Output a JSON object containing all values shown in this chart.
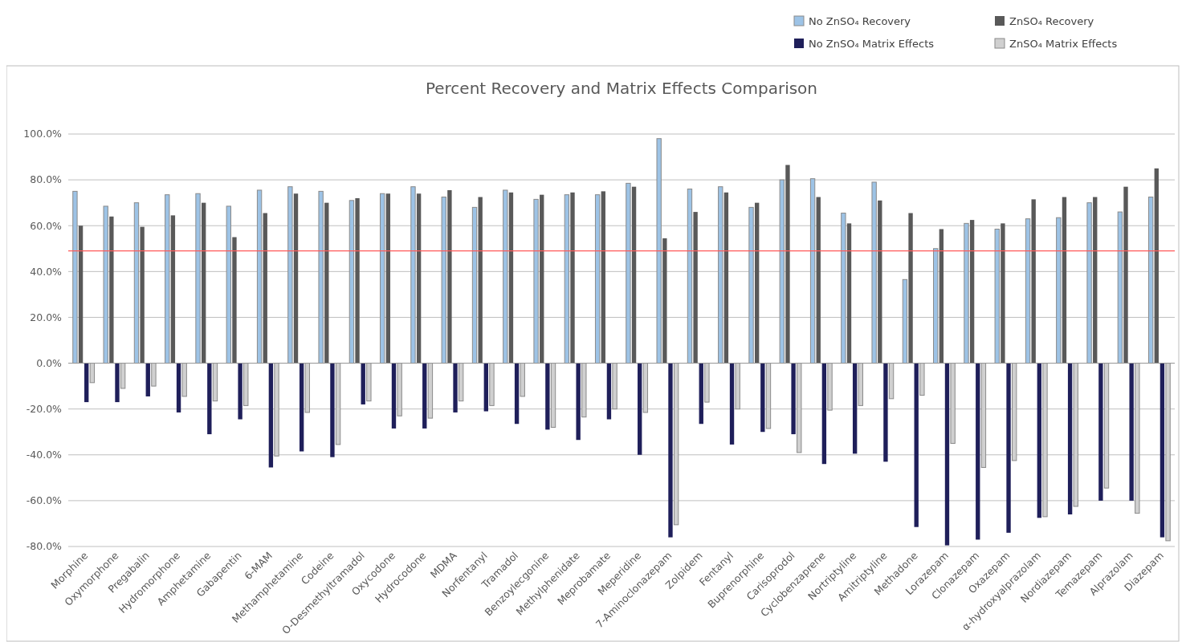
{
  "chart_data": {
    "type": "bar",
    "title": "Percent Recovery and Matrix Effects Comparison",
    "categories": [
      "Morphine",
      "Oxymorphone",
      "Pregabalin",
      "Hydromorphone",
      "Amphetamine",
      "Gabapentin",
      "6-MAM",
      "Methamphetamine",
      "Codeine",
      "O-Desmethyltramadol",
      "Oxycodone",
      "Hydrocodone",
      "MDMA",
      "Norfentanyl",
      "Tramadol",
      "Benzoylecgonine",
      "Methylphenidate",
      "Meprobamate",
      "Meperidine",
      "7-Aminoclonazepam",
      "Zolpidem",
      "Fentanyl",
      "Buprenorphine",
      "Carisoprodol",
      "Cyclobenzaprene",
      "Nortriptyline",
      "Amitriptyline",
      "Methadone",
      "Lorazepam",
      "Clonazepam",
      "Oxazepam",
      "α-hydroxyalprazolam",
      "Nordiazepam",
      "Temazepam",
      "Alprazolam",
      "Diazepam"
    ],
    "series": [
      {
        "name": "No ZnSO₄ Recovery",
        "color": "#9dc3e6",
        "values": [
          75,
          68.5,
          70,
          73.5,
          74,
          68.5,
          75.5,
          77,
          75,
          71,
          74,
          77,
          72.5,
          68,
          75.5,
          71.5,
          73.5,
          73.5,
          78.5,
          98,
          76,
          77,
          68,
          80,
          80.5,
          65.5,
          79,
          36.5,
          50,
          61,
          58.5,
          63,
          63.5,
          70,
          66,
          72.5
        ]
      },
      {
        "name": "ZnSO₄ Recovery",
        "color": "#595959",
        "values": [
          60,
          64,
          59.5,
          64.5,
          70,
          55,
          65.5,
          74,
          70,
          72,
          74,
          74,
          75.5,
          72.5,
          74.5,
          73.5,
          74.5,
          75,
          77,
          54.5,
          66,
          74.5,
          70,
          86.5,
          72.5,
          61,
          71,
          65.5,
          58.5,
          62.5,
          61,
          71.5,
          72.5,
          72.5,
          77,
          85
        ]
      },
      {
        "name": "No ZnSO₄ Matrix Effects",
        "color": "#1f1f5a",
        "values": [
          -17,
          -17,
          -14.5,
          -21.5,
          -31,
          -24.5,
          -45.5,
          -38.5,
          -41,
          -18,
          -28.5,
          -28.5,
          -21.5,
          -21,
          -26.5,
          -29,
          -33.5,
          -24.5,
          -40,
          -76,
          -26.5,
          -35.5,
          -30,
          -31,
          -44,
          -39.5,
          -43,
          -71.5,
          -79.5,
          -77,
          -74,
          -67.5,
          -66,
          -60,
          -60,
          -76
        ]
      },
      {
        "name": "ZnSO₄ Matrix Effects",
        "color": "#d0d0d0",
        "values": [
          -8.5,
          -11,
          -10,
          -14.5,
          -16.5,
          -18.5,
          -40.5,
          -21.5,
          -35.5,
          -16.5,
          -23,
          -24,
          -16.5,
          -18.5,
          -14.5,
          -28,
          -23.5,
          -20,
          -21.5,
          -70.5,
          -17,
          -20,
          -28.5,
          -39,
          -20.5,
          -18.5,
          -15.5,
          -14,
          -35,
          -45.5,
          -42.5,
          -67,
          -62.5,
          -54.5,
          -65.5,
          -77.5
        ]
      }
    ],
    "ylim": [
      -80,
      100
    ],
    "yticks": [
      {
        "value": -80,
        "label": "-80.0%"
      },
      {
        "value": -60,
        "label": "-60.0%"
      },
      {
        "value": -40,
        "label": "-40.0%"
      },
      {
        "value": -20,
        "label": "-20.0%"
      },
      {
        "value": 0,
        "label": "0.0%"
      },
      {
        "value": 20,
        "label": "20.0%"
      },
      {
        "value": 40,
        "label": "40.0%"
      },
      {
        "value": 60,
        "label": "60.0%"
      },
      {
        "value": 80,
        "label": "80.0%"
      },
      {
        "value": 100,
        "label": "100.0%"
      }
    ],
    "grid": "y",
    "legend": "top right",
    "ref_lines": [
      {
        "axis": "y",
        "value": 49,
        "color": "#ff5a5a"
      }
    ]
  }
}
